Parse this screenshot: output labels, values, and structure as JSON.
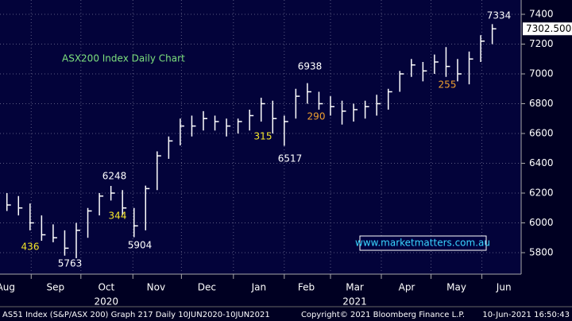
{
  "chart_data": {
    "type": "ohlc",
    "title": "ASX200 Index Daily Chart",
    "watermark": "www.marketmatters.com.au",
    "footer": [
      "AS51 Index (S&P/ASX 200) Graph 217  Daily 10JUN2020-10JUN2021",
      "Copyright© 2021 Bloomberg Finance L.P.",
      "10-Jun-2021 16:50:43"
    ],
    "years": [
      {
        "value": 10.6,
        "label": "2020"
      },
      {
        "value": 32.1,
        "label": "2021"
      }
    ],
    "last_price": {
      "value": 7302.5,
      "label": "7302.500"
    },
    "x": [
      2,
      3,
      4,
      5,
      6,
      7,
      8,
      9,
      10,
      11,
      12,
      13,
      14,
      15,
      16,
      17,
      18,
      19,
      20,
      21,
      22,
      23,
      24,
      25,
      26,
      27,
      28,
      29,
      30,
      31,
      32,
      33,
      34,
      35,
      36,
      37,
      38,
      39,
      40,
      41,
      42,
      43,
      44
    ],
    "series": [
      {
        "name": "High",
        "values": [
          6200,
          6180,
          6130,
          6050,
          5990,
          5950,
          6000,
          6100,
          6200,
          6248,
          6220,
          6100,
          6250,
          6480,
          6580,
          6700,
          6720,
          6750,
          6720,
          6700,
          6700,
          6760,
          6840,
          6820,
          6720,
          6900,
          6938,
          6880,
          6850,
          6820,
          6800,
          6820,
          6860,
          6900,
          7020,
          7100,
          7080,
          7130,
          7180,
          7100,
          7150,
          7260,
          7334
        ]
      },
      {
        "name": "Low",
        "values": [
          6080,
          6050,
          5950,
          5880,
          5870,
          5780,
          5763,
          5900,
          6050,
          6150,
          6050,
          5904,
          5950,
          6220,
          6430,
          6520,
          6580,
          6620,
          6620,
          6580,
          6600,
          6620,
          6680,
          6600,
          6517,
          6700,
          6800,
          6760,
          6720,
          6660,
          6680,
          6700,
          6720,
          6760,
          6880,
          6980,
          6950,
          7000,
          6980,
          6950,
          6930,
          7080,
          7200
        ]
      },
      {
        "name": "Close",
        "values": [
          6120,
          6100,
          6000,
          5920,
          5900,
          5830,
          5950,
          6080,
          6180,
          6200,
          6100,
          5980,
          6230,
          6450,
          6550,
          6650,
          6650,
          6700,
          6680,
          6650,
          6680,
          6720,
          6800,
          6700,
          6680,
          6850,
          6880,
          6800,
          6780,
          6750,
          6760,
          6780,
          6800,
          6880,
          7000,
          7060,
          7020,
          7080,
          7050,
          7000,
          7100,
          7220,
          7302.5
        ]
      }
    ],
    "annotations": [
      {
        "label": "7334",
        "color": "#ffffff"
      },
      {
        "label": "6938",
        "color": "#ffffff"
      },
      {
        "label": "6517",
        "color": "#ffffff"
      },
      {
        "label": "6248",
        "color": "#ffffff"
      },
      {
        "label": "5904",
        "color": "#ffffff"
      },
      {
        "label": "5763",
        "color": "#ffffff"
      },
      {
        "label": "436",
        "color": "#f5e62a"
      },
      {
        "label": "344",
        "color": "#f5e62a"
      },
      {
        "label": "315",
        "color": "#f5e62a"
      },
      {
        "label": "290",
        "color": "#f0a030"
      },
      {
        "label": "255",
        "color": "#f0a030"
      }
    ],
    "xlim": [
      1.4,
      46.5
    ],
    "xticks": [
      {
        "value": 1.9,
        "label": "Aug"
      },
      {
        "value": 6.2,
        "label": "Sep"
      },
      {
        "value": 10.6,
        "label": "Oct"
      },
      {
        "value": 14.9,
        "label": "Nov"
      },
      {
        "value": 19.3,
        "label": "Dec"
      },
      {
        "value": 23.8,
        "label": "Jan"
      },
      {
        "value": 27.9,
        "label": "Feb"
      },
      {
        "value": 32.1,
        "label": "Mar"
      },
      {
        "value": 36.6,
        "label": "Apr"
      },
      {
        "value": 40.9,
        "label": "May"
      },
      {
        "value": 45.0,
        "label": "Jun"
      }
    ],
    "xgrid": [
      4.1,
      8.4,
      12.9,
      17.1,
      21.6,
      26.0,
      30.0,
      34.4,
      38.7,
      43.1
    ],
    "ylim": [
      5656,
      7496
    ],
    "yticks": [
      5800,
      6000,
      6200,
      6400,
      6600,
      6800,
      7000,
      7200,
      7400
    ],
    "grid": true,
    "color": "#ffffff"
  }
}
